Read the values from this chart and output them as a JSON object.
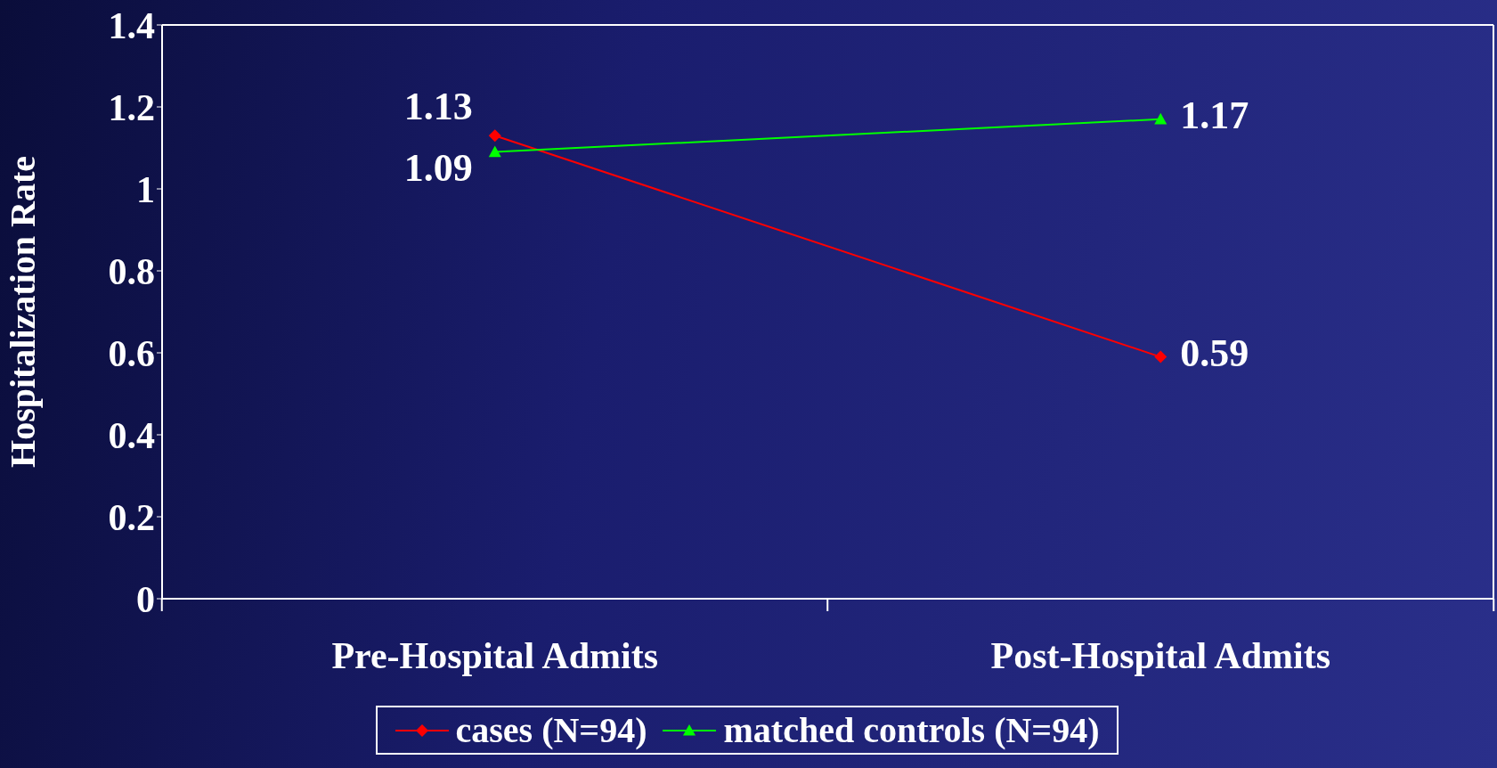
{
  "chart_data": {
    "type": "line",
    "ylabel": "Hospitalization Rate",
    "categories": [
      "Pre-Hospital Admits",
      "Post-Hospital Admits"
    ],
    "series": [
      {
        "name": "cases (N=94)",
        "color": "#ff0000",
        "marker": "diamond",
        "values": [
          1.13,
          0.59
        ]
      },
      {
        "name": "matched controls (N=94)",
        "color": "#00ff00",
        "marker": "triangle",
        "values": [
          1.09,
          1.17
        ]
      }
    ],
    "ylim": [
      0,
      1.4
    ],
    "yticks": [
      0,
      0.2,
      0.4,
      0.6,
      0.8,
      1,
      1.2,
      1.4
    ],
    "data_labels": true,
    "legend": "bottom"
  }
}
